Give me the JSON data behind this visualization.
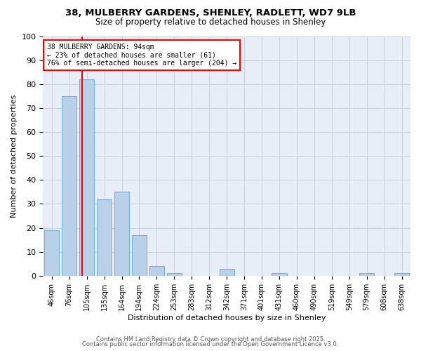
{
  "title": "38, MULBERRY GARDENS, SHENLEY, RADLETT, WD7 9LB",
  "subtitle": "Size of property relative to detached houses in Shenley",
  "xlabel": "Distribution of detached houses by size in Shenley",
  "ylabel": "Number of detached properties",
  "bar_labels": [
    "46sqm",
    "76sqm",
    "105sqm",
    "135sqm",
    "164sqm",
    "194sqm",
    "224sqm",
    "253sqm",
    "283sqm",
    "312sqm",
    "342sqm",
    "371sqm",
    "401sqm",
    "431sqm",
    "460sqm",
    "490sqm",
    "519sqm",
    "549sqm",
    "579sqm",
    "608sqm",
    "638sqm"
  ],
  "bar_values": [
    19,
    75,
    82,
    32,
    35,
    17,
    4,
    1,
    0,
    0,
    3,
    0,
    0,
    1,
    0,
    0,
    0,
    0,
    1,
    0,
    1
  ],
  "bar_color": "#b8d0e8",
  "bar_edge_color": "#6baed6",
  "vline_color": "red",
  "vline_pos": 1.72,
  "annotation_title": "38 MULBERRY GARDENS: 94sqm",
  "annotation_line2": "← 23% of detached houses are smaller (61)",
  "annotation_line3": "76% of semi-detached houses are larger (204) →",
  "annotation_box_color": "#ffffff",
  "annotation_box_edge": "red",
  "ylim": [
    0,
    100
  ],
  "yticks": [
    0,
    10,
    20,
    30,
    40,
    50,
    60,
    70,
    80,
    90,
    100
  ],
  "bg_color": "#ffffff",
  "plot_bg_color": "#e8eef8",
  "grid_color": "#c8d0dc",
  "footer1": "Contains HM Land Registry data © Crown copyright and database right 2025.",
  "footer2": "Contains public sector information licensed under the Open Government Licence v3.0.",
  "title_fontsize": 9.5,
  "subtitle_fontsize": 8.5,
  "axis_label_fontsize": 8,
  "tick_fontsize": 7,
  "annot_fontsize": 7,
  "footer_fontsize": 6
}
